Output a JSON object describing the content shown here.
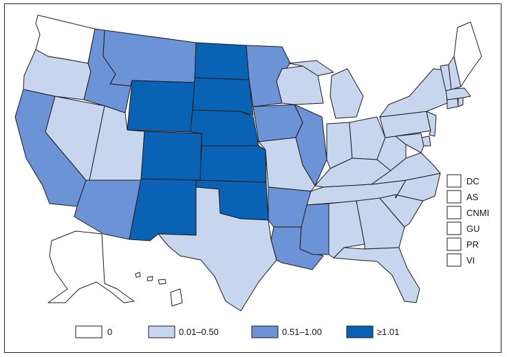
{
  "colors": {
    "c0": "#ffffff",
    "c1": "#c7d5ee",
    "c2": "#6b93d6",
    "c3": "#0a62b4"
  },
  "legend": [
    {
      "label": "0",
      "color_key": "c0"
    },
    {
      "label": "0.01–0.50",
      "color_key": "c1"
    },
    {
      "label": "0.51–1.00",
      "color_key": "c2"
    },
    {
      "label": "≥1.01",
      "color_key": "c3"
    }
  ],
  "territories": [
    {
      "label": "DC",
      "color_key": "c0"
    },
    {
      "label": "AS",
      "color_key": "c0"
    },
    {
      "label": "CNMI",
      "color_key": "c0"
    },
    {
      "label": "GU",
      "color_key": "c0"
    },
    {
      "label": "PR",
      "color_key": "c0"
    },
    {
      "label": "VI",
      "color_key": "c0"
    }
  ],
  "states": {
    "WA": "c0",
    "OR": "c1",
    "CA": "c2",
    "NV": "c1",
    "ID": "c2",
    "MT": "c2",
    "WY": "c3",
    "UT": "c1",
    "CO": "c3",
    "AZ": "c2",
    "NM": "c3",
    "ND": "c3",
    "SD": "c3",
    "NE": "c3",
    "KS": "c3",
    "OK": "c3",
    "TX": "c1",
    "MN": "c2",
    "IA": "c2",
    "MO": "c1",
    "AR": "c2",
    "LA": "c2",
    "WI": "c1",
    "IL": "c2",
    "MI": "c1",
    "IN": "c1",
    "OH": "c1",
    "KY": "c1",
    "TN": "c1",
    "MS": "c2",
    "AL": "c1",
    "GA": "c1",
    "FL": "c1",
    "SC": "c1",
    "NC": "c1",
    "VA": "c1",
    "WV": "c1",
    "PA": "c1",
    "NY": "c1",
    "VT": "c1",
    "NH": "c1",
    "ME": "c0",
    "MA": "c1",
    "RI": "c1",
    "CT": "c1",
    "NJ": "c1",
    "DE": "c1",
    "MD": "c1",
    "AK": "c0",
    "HI": "c0"
  }
}
